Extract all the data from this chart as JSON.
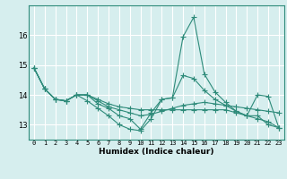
{
  "xlabel": "Humidex (Indice chaleur)",
  "x": [
    0,
    1,
    2,
    3,
    4,
    5,
    6,
    7,
    8,
    9,
    10,
    11,
    12,
    13,
    14,
    15,
    16,
    17,
    18,
    19,
    20,
    21,
    22,
    23
  ],
  "series": [
    [
      14.9,
      14.2,
      13.85,
      13.8,
      14.0,
      13.8,
      13.55,
      13.3,
      13.0,
      12.85,
      12.8,
      13.2,
      13.85,
      13.9,
      15.95,
      16.6,
      14.7,
      14.1,
      13.75,
      13.45,
      13.3,
      13.3,
      13.0,
      12.9
    ],
    [
      14.9,
      14.2,
      13.85,
      13.8,
      14.0,
      14.0,
      13.7,
      13.55,
      13.3,
      13.2,
      12.85,
      13.4,
      13.85,
      13.9,
      14.65,
      14.55,
      14.15,
      13.85,
      13.65,
      13.45,
      13.3,
      14.0,
      13.95,
      12.9
    ],
    [
      14.9,
      14.2,
      13.85,
      13.8,
      14.0,
      14.0,
      13.8,
      13.6,
      13.5,
      13.4,
      13.3,
      13.35,
      13.45,
      13.55,
      13.65,
      13.7,
      13.75,
      13.7,
      13.65,
      13.6,
      13.55,
      13.5,
      13.45,
      13.4
    ],
    [
      14.9,
      14.2,
      13.85,
      13.8,
      14.0,
      14.0,
      13.85,
      13.7,
      13.6,
      13.55,
      13.5,
      13.5,
      13.5,
      13.5,
      13.5,
      13.5,
      13.5,
      13.5,
      13.5,
      13.4,
      13.3,
      13.2,
      13.1,
      12.9
    ]
  ],
  "line_color": "#2e8b7a",
  "bg_color": "#d6eeee",
  "grid_color": "#ffffff",
  "ylim": [
    12.5,
    17.0
  ],
  "yticks": [
    13,
    14,
    15,
    16
  ],
  "marker": "+",
  "marker_size": 4.0,
  "linewidth": 0.8,
  "xtick_labels": [
    "0",
    "1",
    "2",
    "3",
    "4",
    "5",
    "6",
    "7",
    "8",
    "9",
    "10",
    "11",
    "12",
    "13",
    "14",
    "15",
    "16",
    "17",
    "18",
    "19",
    "20",
    "21",
    "22",
    "23"
  ]
}
